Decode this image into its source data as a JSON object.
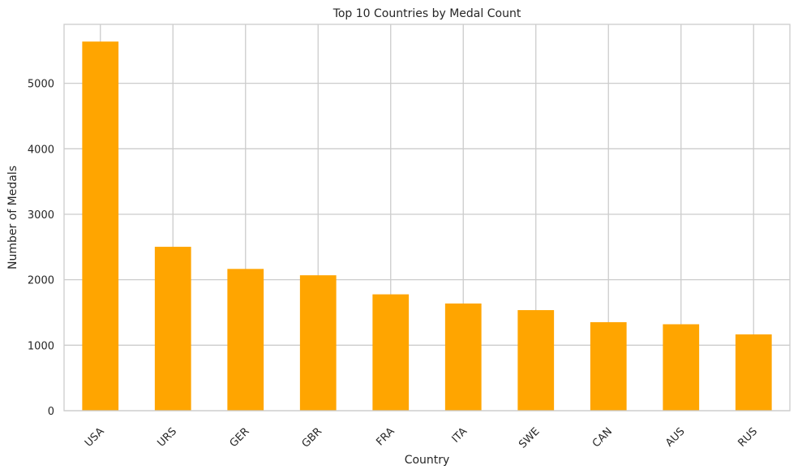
{
  "chart_data": {
    "type": "bar",
    "title": "Top 10 Countries by Medal Count",
    "xlabel": "Country",
    "ylabel": "Number of Medals",
    "categories": [
      "USA",
      "URS",
      "GER",
      "GBR",
      "FRA",
      "ITA",
      "SWE",
      "CAN",
      "AUS",
      "RUS"
    ],
    "values": [
      5637,
      2503,
      2165,
      2068,
      1777,
      1637,
      1536,
      1352,
      1320,
      1165
    ],
    "ylim": [
      0,
      5900
    ],
    "yticks": [
      0,
      1000,
      2000,
      3000,
      4000,
      5000
    ],
    "bar_color": "#FFA500",
    "grid": true,
    "xtick_rotation": "45 degrees"
  }
}
